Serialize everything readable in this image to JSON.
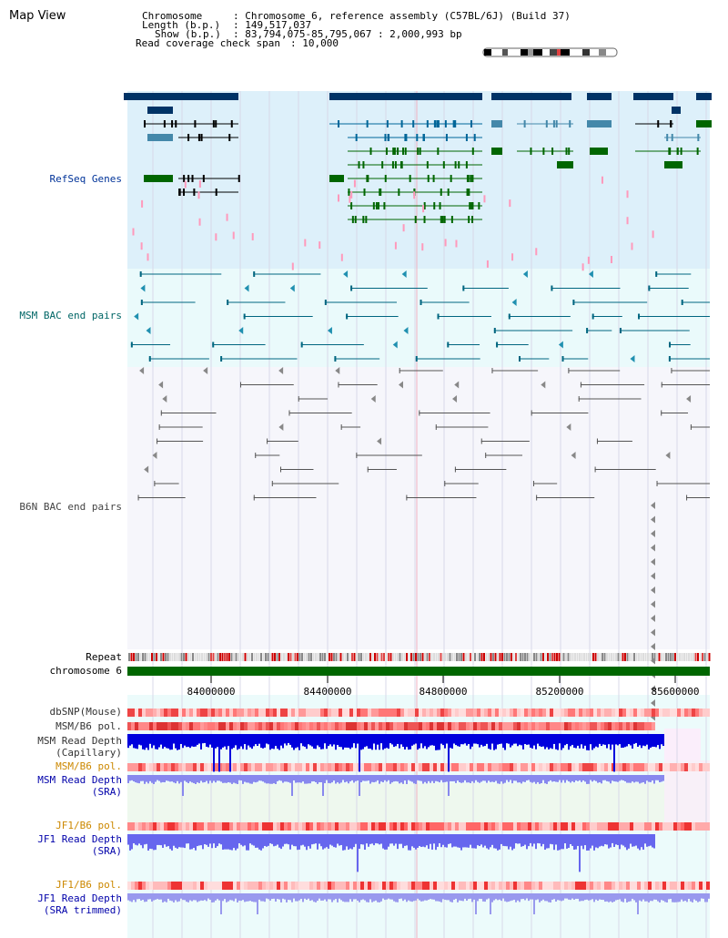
{
  "view": {
    "title": "Map View"
  },
  "header": {
    "chromosome_key": "Chromosome",
    "chromosome_val": ": Chromosome 6, reference assembly (C57BL/6J) (Build 37)",
    "length_key": "Length (b.p.)",
    "length_val": ": 149,517,037",
    "show_key": "Show (b.p.)",
    "show_val": ": 83,794,075-85,795,067 : 2,000,993 bp",
    "coverage_key": "Read coverage check span",
    "coverage_val": ": 10,000"
  },
  "tracks": {
    "refseq": {
      "label": "RefSeq Genes",
      "color": "#003399"
    },
    "msm_bac": {
      "label": "MSM BAC end pairs",
      "color": "#006666"
    },
    "b6n_bac": {
      "label": "B6N BAC end pairs",
      "color": "#444444"
    },
    "repeat": {
      "label": "Repeat"
    },
    "chromosome": {
      "label": "chromosome 6",
      "color": "#006600"
    },
    "dbsnp": {
      "label": "dbSNP(Mouse)"
    },
    "msm_b6_pol": {
      "label": "MSM/B6 pol."
    },
    "msm_depth_cap": {
      "label1": "MSM Read Depth",
      "label2": "(Capillary)"
    },
    "msm_b6_pol_sra": {
      "label": "MSM/B6 pol.",
      "color": "#cc8800"
    },
    "msm_depth_sra": {
      "label1": "MSM Read Depth",
      "label2": "(SRA)",
      "color": "#0000aa"
    },
    "jf1_b6_pol": {
      "label": "JF1/B6 pol.",
      "color": "#cc8800"
    },
    "jf1_depth_sra": {
      "label1": "JF1 Read Depth",
      "label2": "(SRA)",
      "color": "#0000aa"
    },
    "jf1_b6_pol_trim": {
      "label": "JF1/B6 pol.",
      "color": "#cc8800"
    },
    "jf1_depth_trim": {
      "label1": "JF1 Read Depth",
      "label2": "(SRA trimmed)",
      "color": "#0000aa"
    }
  },
  "axis": {
    "ticks": [
      "84000000",
      "84400000",
      "84800000",
      "85200000",
      "85600000"
    ]
  }
}
